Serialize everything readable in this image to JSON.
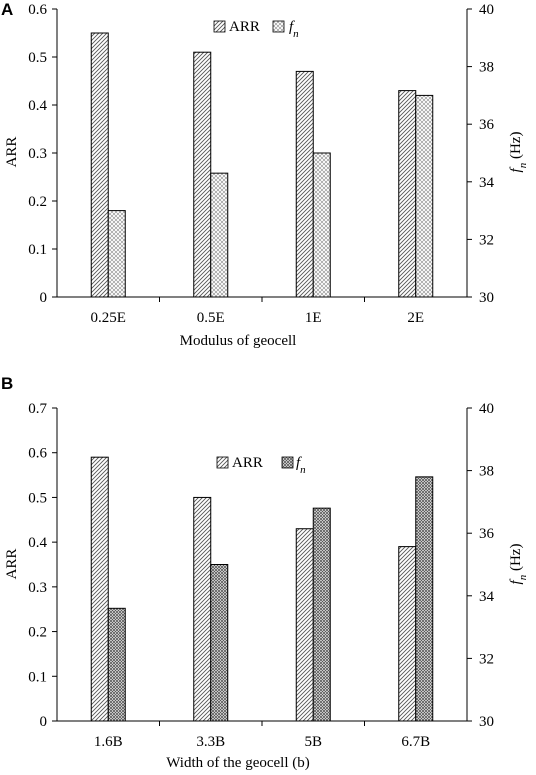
{
  "chart_data": [
    {
      "type": "bar",
      "panel_label": "A",
      "categories": [
        "0.25E",
        "0.5E",
        "1E",
        "2E"
      ],
      "series": [
        {
          "name": "ARR",
          "axis": "left",
          "pattern": "diagonal",
          "values": [
            0.55,
            0.51,
            0.47,
            0.43
          ]
        },
        {
          "name": "fn",
          "axis": "right",
          "pattern": "crosshatch",
          "values": [
            33.0,
            34.3,
            35.0,
            37.0
          ]
        }
      ],
      "xlabel": "Modulus of geocell",
      "ylabel": "ARR",
      "ylabel_right": "fn (Hz)",
      "ylim": [
        0,
        0.6
      ],
      "yticks": [
        "0",
        "0.1",
        "0.2",
        "0.3",
        "0.4",
        "0.5",
        "0.6"
      ],
      "ylim_right": [
        30,
        40
      ],
      "yticks_right": [
        "30",
        "32",
        "34",
        "36",
        "38",
        "40"
      ],
      "legend_position": "top-center",
      "grid": false
    },
    {
      "type": "bar",
      "panel_label": "B",
      "categories": [
        "1.6B",
        "3.3B",
        "5B",
        "6.7B"
      ],
      "series": [
        {
          "name": "ARR",
          "axis": "left",
          "pattern": "diagonal",
          "values": [
            0.59,
            0.5,
            0.43,
            0.39
          ]
        },
        {
          "name": "fn",
          "axis": "right",
          "pattern": "crosshatch-dense",
          "values": [
            33.6,
            35.0,
            36.8,
            37.8
          ]
        }
      ],
      "xlabel": "Width of the geocell (b)",
      "ylabel": "ARR",
      "ylabel_right": "fn (Hz)",
      "ylim": [
        0,
        0.7
      ],
      "yticks": [
        "0",
        "0.1",
        "0.2",
        "0.3",
        "0.4",
        "0.5",
        "0.6",
        "0.7"
      ],
      "ylim_right": [
        30,
        40
      ],
      "yticks_right": [
        "30",
        "32",
        "34",
        "36",
        "38",
        "40"
      ],
      "legend_position": "top-center",
      "grid": false
    }
  ],
  "colors": {
    "bar_fill": "#ffffff",
    "pattern": "#555555",
    "axis": "#000000"
  }
}
